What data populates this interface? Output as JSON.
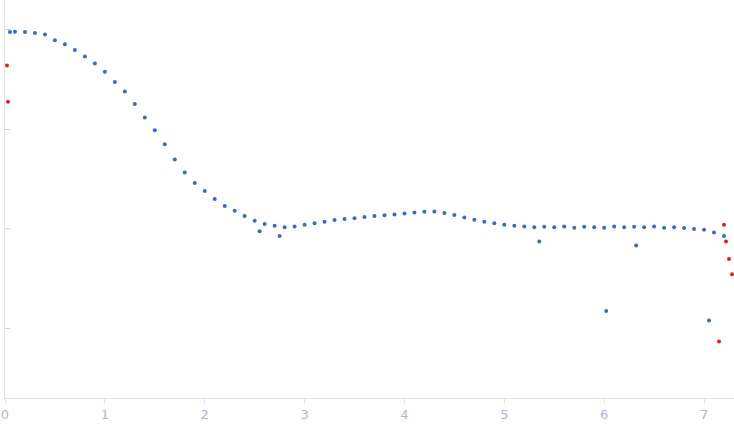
{
  "chart_data": {
    "type": "scatter",
    "log": "y",
    "grid": false,
    "tick_labels": "x",
    "marker": "circle",
    "xlim": [
      0,
      7.3
    ],
    "xticks": [
      0,
      1,
      2,
      3,
      4,
      5,
      6,
      7
    ],
    "ylim": [
      0.0002,
      2
    ],
    "yticks": [
      0.001,
      0.01,
      0.1,
      1
    ],
    "series": [
      {
        "color": "#3d68c4",
        "x": [
          0.05,
          0.1,
          0.2,
          0.3,
          0.4,
          0.5,
          0.6,
          0.7,
          0.8,
          0.9,
          1.0,
          1.1,
          1.2,
          1.3,
          1.4,
          1.5,
          1.6,
          1.7,
          1.8,
          1.9,
          2.0,
          2.1,
          2.2,
          2.3,
          2.4,
          2.5,
          2.55,
          2.6,
          2.7,
          2.75,
          2.8,
          2.9,
          3.0,
          3.1,
          3.2,
          3.3,
          3.4,
          3.5,
          3.6,
          3.7,
          3.8,
          3.9,
          4.0,
          4.1,
          4.2,
          4.3,
          4.4,
          4.5,
          4.6,
          4.7,
          4.8,
          4.9,
          5.0,
          5.1,
          5.2,
          5.3,
          5.35,
          5.4,
          5.5,
          5.6,
          5.7,
          5.8,
          5.9,
          6.0,
          6.02,
          6.1,
          6.2,
          6.3,
          6.32,
          6.4,
          6.5,
          6.6,
          6.7,
          6.8,
          6.9,
          7.0,
          7.05,
          7.1,
          7.2
        ],
        "values": [
          0.955,
          0.96,
          0.955,
          0.93,
          0.9,
          0.79,
          0.72,
          0.63,
          0.54,
          0.46,
          0.38,
          0.3,
          0.24,
          0.18,
          0.132,
          0.098,
          0.071,
          0.05,
          0.037,
          0.029,
          0.024,
          0.02,
          0.017,
          0.0152,
          0.0135,
          0.0121,
          0.0095,
          0.0112,
          0.0108,
          0.0085,
          0.0104,
          0.0106,
          0.011,
          0.0114,
          0.0118,
          0.0123,
          0.0126,
          0.0128,
          0.0132,
          0.0135,
          0.0137,
          0.014,
          0.0143,
          0.0146,
          0.0149,
          0.015,
          0.0145,
          0.0138,
          0.013,
          0.0124,
          0.0118,
          0.0114,
          0.011,
          0.0108,
          0.0106,
          0.0104,
          0.0075,
          0.0105,
          0.0104,
          0.0106,
          0.0103,
          0.0105,
          0.0104,
          0.0103,
          0.0015,
          0.0106,
          0.0104,
          0.0105,
          0.0068,
          0.0104,
          0.0106,
          0.0103,
          0.0104,
          0.0102,
          0.01,
          0.0098,
          0.0012,
          0.0092,
          0.0085
        ]
      },
      {
        "color": "#e02020",
        "x": [
          0.02,
          0.03,
          7.15,
          7.2,
          7.22,
          7.25,
          7.28
        ],
        "values": [
          0.44,
          0.19,
          0.00074,
          0.011,
          0.0075,
          0.005,
          0.0035
        ]
      }
    ]
  }
}
